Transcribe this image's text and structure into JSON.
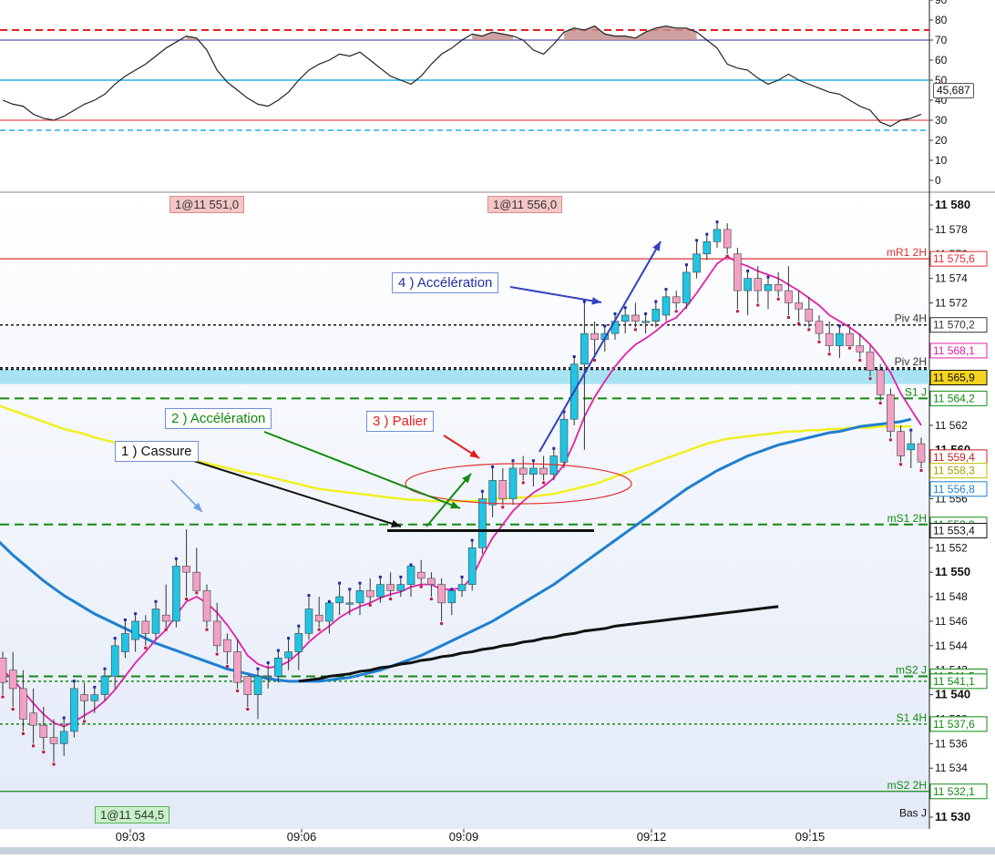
{
  "colors": {
    "bull": "#20c4e4",
    "bear": "#f2a0c4",
    "ma_fast": "#e020a8",
    "ma_mid": "#f0f020",
    "ma_slow": "#1f7fd0",
    "ma_long": "#111111",
    "osc": "#222222"
  },
  "oscillator": {
    "value_label": "45,687",
    "ticks": [
      "90",
      "80",
      "70",
      "60",
      "50",
      "40",
      "30",
      "20",
      "10",
      "0"
    ],
    "levels": [
      75,
      70,
      50,
      30,
      25
    ]
  },
  "price_axis": {
    "ticks": [
      "11 580",
      "11 578",
      "11 576",
      "11 574",
      "11 572",
      "11 570",
      "11 568",
      "11 566",
      "11 564",
      "11 562",
      "11 560",
      "11 558",
      "11 556",
      "11 554",
      "11 552",
      "11 550",
      "11 548",
      "11 546",
      "11 544",
      "11 542",
      "11 540",
      "11 538",
      "11 536",
      "11 534",
      "11 532",
      "11 530"
    ]
  },
  "time_axis": {
    "ticks": [
      "09:03",
      "09:06",
      "09:09",
      "09:12",
      "09:15"
    ]
  },
  "level_lines": [
    {
      "name": "mR1 2H",
      "value": "11 575,6",
      "price": 11575.6,
      "style": "solid",
      "color": "#e03030",
      "label_color": "#e03030",
      "box": "#ffffff"
    },
    {
      "name": "Piv 4H",
      "value": "11 570,2",
      "price": 11570.2,
      "style": "dotted",
      "color": "#111111",
      "label_color": "#333333",
      "box": "#ffffff"
    },
    {
      "name": "",
      "value": "11 568,1",
      "price": 11568.1,
      "style": "none",
      "color": "#e020a8",
      "label_color": "#e020a8",
      "box": "#ffffff"
    },
    {
      "name": "Piv 2H",
      "value": "",
      "price": 11566.7,
      "style": "dotted",
      "color": "#111111",
      "label_color": "#333333",
      "box": "#ffffff"
    },
    {
      "name": "",
      "value": "11 565,9",
      "price": 11565.9,
      "style": "band",
      "color": "#9adff0",
      "label_color": "#111111",
      "box": "#f5d320"
    },
    {
      "name": "S1 J",
      "value": "11 564,2",
      "price": 11564.2,
      "style": "dashed",
      "color": "#108a10",
      "label_color": "#108a10",
      "box": "#ffffff"
    },
    {
      "name": "",
      "value": "11 559,4",
      "price": 11559.4,
      "style": "none",
      "color": "#e03030",
      "label_color": "#c02020",
      "box": "#ffffff"
    },
    {
      "name": "",
      "value": "11 558,3",
      "price": 11558.3,
      "style": "none",
      "color": "#f0f020",
      "label_color": "#a0a000",
      "box": "#ffffff"
    },
    {
      "name": "",
      "value": "11 556,8",
      "price": 11556.8,
      "style": "none",
      "color": "#1f7fd0",
      "label_color": "#1f7fd0",
      "box": "#ffffff"
    },
    {
      "name": "mS1 2H",
      "value": "11 553,9",
      "price": 11553.9,
      "style": "dashed",
      "color": "#108a10",
      "label_color": "#108a10",
      "box": "#ffffff"
    },
    {
      "name": "",
      "value": "11 553,4",
      "price": 11553.4,
      "style": "none",
      "color": "#111111",
      "label_color": "#111111",
      "box": "#ffffff"
    },
    {
      "name": "mS2 J",
      "value": "11 541,5",
      "price": 11541.5,
      "style": "dashed",
      "color": "#108a10",
      "label_color": "#108a10",
      "box": "#ffffff"
    },
    {
      "name": "",
      "value": "11 541,1",
      "price": 11541.1,
      "style": "dotted",
      "color": "#108a10",
      "label_color": "#108a10",
      "box": "#ffffff"
    },
    {
      "name": "S1 4H",
      "value": "11 537,6",
      "price": 11537.6,
      "style": "dotted",
      "color": "#108a10",
      "label_color": "#108a10",
      "box": "#ffffff"
    },
    {
      "name": "mS2 2H",
      "value": "11 532,1",
      "price": 11532.1,
      "style": "solid",
      "color": "#108a10",
      "label_color": "#108a10",
      "box": "#ffffff"
    },
    {
      "name": "Bas J",
      "value": "",
      "price": 11529.8,
      "style": "none",
      "color": "#111111",
      "label_color": "#111111",
      "box": "#ffffff"
    }
  ],
  "trade_tags": [
    {
      "text": "1@11 551,0",
      "color": "#f4c6c6",
      "border": "#e08a8a"
    },
    {
      "text": "1@11 556,0",
      "color": "#f4c6c6",
      "border": "#e08a8a"
    },
    {
      "text": "1@11 544,5",
      "color": "#c8f0c8",
      "border": "#58b058"
    }
  ],
  "annotations": [
    {
      "label": "1 ) Cassure",
      "color": "#111111"
    },
    {
      "label": "2 ) Accélération",
      "color": "#108a10"
    },
    {
      "label": "3 ) Palier",
      "color": "#e02020"
    },
    {
      "label": "4 ) Accélération",
      "color": "#2030a0"
    }
  ],
  "chart_data": {
    "type": "candlestick",
    "title": "",
    "price_range": [
      11530,
      11580
    ],
    "oscillator_range": [
      0,
      90
    ],
    "candles": [
      [
        11543.0,
        11543.5,
        11540.0,
        11541.0
      ],
      [
        11542.0,
        11543.5,
        11539.0,
        11540.5
      ],
      [
        11540.5,
        11542.0,
        11537.0,
        11538.0
      ],
      [
        11538.5,
        11540.5,
        11536.0,
        11537.5
      ],
      [
        11537.5,
        11539.0,
        11535.5,
        11536.5
      ],
      [
        11536.5,
        11538.0,
        11534.5,
        11536.0
      ],
      [
        11536.0,
        11538.0,
        11535.0,
        11537.0
      ],
      [
        11537.0,
        11541.0,
        11536.5,
        11540.5
      ],
      [
        11540.0,
        11541.0,
        11538.0,
        11539.5
      ],
      [
        11539.5,
        11540.5,
        11538.5,
        11540.0
      ],
      [
        11540.0,
        11542.0,
        11539.5,
        11541.5
      ],
      [
        11541.5,
        11544.5,
        11540.5,
        11544.0
      ],
      [
        11543.5,
        11546.0,
        11543.0,
        11545.0
      ],
      [
        11544.5,
        11546.5,
        11543.5,
        11546.0
      ],
      [
        11546.0,
        11546.5,
        11544.0,
        11545.0
      ],
      [
        11545.0,
        11547.5,
        11544.5,
        11547.0
      ],
      [
        11546.5,
        11549.0,
        11545.5,
        11546.0
      ],
      [
        11546.0,
        11551.0,
        11545.5,
        11550.5
      ],
      [
        11550.5,
        11553.5,
        11548.0,
        11550.0
      ],
      [
        11550.0,
        11552.0,
        11548.5,
        11548.5
      ],
      [
        11548.5,
        11549.0,
        11545.5,
        11546.0
      ],
      [
        11546.0,
        11547.5,
        11543.5,
        11544.0
      ],
      [
        11544.5,
        11545.0,
        11542.5,
        11543.5
      ],
      [
        11543.5,
        11544.5,
        11540.5,
        11541.0
      ],
      [
        11541.5,
        11541.5,
        11539.0,
        11540.0
      ],
      [
        11540.0,
        11542.0,
        11538.0,
        11541.5
      ],
      [
        11541.5,
        11542.5,
        11540.5,
        11541.5
      ],
      [
        11541.5,
        11543.5,
        11541.0,
        11543.0
      ],
      [
        11543.0,
        11544.5,
        11542.0,
        11543.5
      ],
      [
        11543.5,
        11545.5,
        11542.0,
        11545.0
      ],
      [
        11545.0,
        11548.0,
        11544.5,
        11547.0
      ],
      [
        11546.5,
        11548.0,
        11545.5,
        11546.0
      ],
      [
        11546.0,
        11547.5,
        11545.0,
        11547.5
      ],
      [
        11547.5,
        11549.0,
        11546.5,
        11548.0
      ],
      [
        11547.5,
        11548.5,
        11546.5,
        11547.5
      ],
      [
        11547.5,
        11549.0,
        11546.5,
        11548.5
      ],
      [
        11548.5,
        11549.5,
        11547.5,
        11548.0
      ],
      [
        11548.0,
        11549.5,
        11547.5,
        11549.0
      ],
      [
        11549.0,
        11550.0,
        11548.0,
        11548.5
      ],
      [
        11548.5,
        11549.5,
        11548.0,
        11549.0
      ],
      [
        11549.0,
        11550.5,
        11548.0,
        11550.5
      ],
      [
        11550.0,
        11551.0,
        11549.0,
        11549.5
      ],
      [
        11549.5,
        11550.0,
        11548.0,
        11549.0
      ],
      [
        11549.0,
        11549.5,
        11546.0,
        11547.5
      ],
      [
        11547.5,
        11548.5,
        11546.5,
        11548.5
      ],
      [
        11548.5,
        11549.5,
        11548.0,
        11549.0
      ],
      [
        11549.0,
        11552.5,
        11548.5,
        11552.0
      ],
      [
        11552.0,
        11556.5,
        11551.5,
        11556.0
      ],
      [
        11555.5,
        11558.5,
        11554.5,
        11557.5
      ],
      [
        11557.5,
        11558.5,
        11555.5,
        11556.0
      ],
      [
        11556.0,
        11559.0,
        11555.5,
        11558.5
      ],
      [
        11558.5,
        11559.5,
        11557.5,
        11558.0
      ],
      [
        11558.0,
        11559.0,
        11557.0,
        11558.5
      ],
      [
        11558.5,
        11559.5,
        11557.5,
        11558.0
      ],
      [
        11558.0,
        11560.0,
        11557.5,
        11559.5
      ],
      [
        11559.0,
        11563.0,
        11558.5,
        11562.5
      ],
      [
        11562.5,
        11567.5,
        11562.0,
        11567.0
      ],
      [
        11567.0,
        11572.0,
        11560.0,
        11569.5
      ],
      [
        11569.5,
        11570.5,
        11567.5,
        11569.0
      ],
      [
        11569.0,
        11570.0,
        11568.0,
        11569.5
      ],
      [
        11569.5,
        11571.0,
        11569.0,
        11570.5
      ],
      [
        11570.5,
        11571.5,
        11569.5,
        11571.0
      ],
      [
        11571.0,
        11572.0,
        11570.0,
        11570.5
      ],
      [
        11570.5,
        11571.0,
        11569.5,
        11570.5
      ],
      [
        11570.5,
        11572.0,
        11570.0,
        11571.5
      ],
      [
        11571.0,
        11573.0,
        11570.5,
        11572.5
      ],
      [
        11572.5,
        11573.0,
        11571.5,
        11572.0
      ],
      [
        11572.0,
        11575.0,
        11571.5,
        11574.5
      ],
      [
        11574.5,
        11577.0,
        11574.0,
        11576.0
      ],
      [
        11576.0,
        11577.5,
        11575.5,
        11577.0
      ],
      [
        11577.0,
        11578.5,
        11576.5,
        11578.0
      ],
      [
        11578.0,
        11578.5,
        11576.0,
        11576.5
      ],
      [
        11576.0,
        11576.5,
        11571.5,
        11573.0
      ],
      [
        11573.0,
        11574.5,
        11571.0,
        11574.0
      ],
      [
        11574.0,
        11575.0,
        11572.0,
        11573.0
      ],
      [
        11573.0,
        11574.0,
        11571.5,
        11573.5
      ],
      [
        11573.5,
        11574.5,
        11572.5,
        11573.0
      ],
      [
        11573.0,
        11575.0,
        11571.0,
        11572.0
      ],
      [
        11572.0,
        11573.0,
        11570.5,
        11571.5
      ],
      [
        11571.5,
        11572.5,
        11570.0,
        11570.5
      ],
      [
        11570.5,
        11571.0,
        11569.0,
        11569.5
      ],
      [
        11569.5,
        11570.5,
        11568.0,
        11568.5
      ],
      [
        11568.5,
        11570.0,
        11567.5,
        11569.5
      ],
      [
        11569.5,
        11570.0,
        11568.5,
        11568.5
      ],
      [
        11568.5,
        11569.5,
        11567.5,
        11568.0
      ],
      [
        11568.0,
        11568.5,
        11566.0,
        11566.5
      ],
      [
        11566.5,
        11567.0,
        11564.0,
        11564.5
      ],
      [
        11564.5,
        11565.0,
        11561.0,
        11561.5
      ],
      [
        11561.5,
        11562.0,
        11559.0,
        11559.5
      ],
      [
        11560.0,
        11561.5,
        11558.5,
        11560.5
      ],
      [
        11560.5,
        11561.0,
        11558.5,
        11559.0
      ]
    ],
    "ma_fast": [
      11542.0,
      11541.2,
      11540.3,
      11539.3,
      11538.4,
      11537.7,
      11537.4,
      11537.8,
      11538.3,
      11538.8,
      11539.5,
      11540.4,
      11541.5,
      11542.6,
      11543.5,
      11544.5,
      11545.3,
      11546.5,
      11547.6,
      11548.0,
      11547.5,
      11546.7,
      11545.7,
      11544.5,
      11543.2,
      11542.5,
      11542.2,
      11542.3,
      11542.7,
      11543.4,
      11544.3,
      11545.0,
      11545.6,
      11546.3,
      11546.8,
      11547.2,
      11547.5,
      11547.9,
      11548.2,
      11548.4,
      11548.8,
      11549.0,
      11549.0,
      11548.6,
      11548.6,
      11548.7,
      11549.6,
      11551.3,
      11552.8,
      11553.9,
      11555.0,
      11555.8,
      11556.5,
      11557.0,
      11557.7,
      11558.8,
      11560.6,
      11562.7,
      11564.3,
      11565.6,
      11566.8,
      11567.8,
      11568.6,
      11569.1,
      11569.7,
      11570.4,
      11570.8,
      11571.7,
      11572.8,
      11574.0,
      11575.2,
      11575.8,
      11575.3,
      11575.0,
      11574.6,
      11574.3,
      11574.0,
      11573.5,
      11573.0,
      11572.4,
      11571.8,
      11571.0,
      11570.5,
      11570.0,
      11569.4,
      11568.6,
      11567.6,
      11566.3,
      11564.6,
      11563.3,
      11562.0
    ],
    "ma_mid": [
      11563.8,
      11563.5,
      11563.2,
      11562.9,
      11562.6,
      11562.3,
      11562.0,
      11561.7,
      11561.5,
      11561.3,
      11561.0,
      11560.8,
      11560.6,
      11560.5,
      11560.3,
      11560.1,
      11559.9,
      11559.7,
      11559.5,
      11559.3,
      11559.1,
      11558.9,
      11558.7,
      11558.5,
      11558.3,
      11558.1,
      11558.0,
      11557.8,
      11557.6,
      11557.4,
      11557.2,
      11557.0,
      11556.8,
      11556.7,
      11556.6,
      11556.5,
      11556.4,
      11556.3,
      11556.2,
      11556.1,
      11556.0,
      11555.9,
      11555.9,
      11555.8,
      11555.8,
      11555.8,
      11555.8,
      11555.8,
      11555.9,
      11556.0,
      11556.0,
      11556.1,
      11556.1,
      11556.2,
      11556.3,
      11556.4,
      11556.6,
      11556.8,
      11557.0,
      11557.2,
      11557.5,
      11557.8,
      11558.1,
      11558.4,
      11558.7,
      11559.0,
      11559.3,
      11559.6,
      11559.9,
      11560.2,
      11560.5,
      11560.7,
      11560.9,
      11561.0,
      11561.1,
      11561.2,
      11561.3,
      11561.4,
      11561.5,
      11561.5,
      11561.6,
      11561.6,
      11561.7,
      11561.7,
      11561.8,
      11561.8,
      11561.8,
      11561.9,
      11561.9,
      11561.9,
      11561.9
    ],
    "ma_slow": [
      11553.0,
      11552.2,
      11551.4,
      11550.7,
      11550.0,
      11549.3,
      11548.7,
      11548.1,
      11547.6,
      11547.1,
      11546.6,
      11546.2,
      11545.8,
      11545.4,
      11545.0,
      11544.6,
      11544.2,
      11543.9,
      11543.6,
      11543.3,
      11543.0,
      11542.7,
      11542.4,
      11542.1,
      11541.9,
      11541.7,
      11541.5,
      11541.3,
      11541.2,
      11541.1,
      11541.1,
      11541.1,
      11541.1,
      11541.2,
      11541.3,
      11541.4,
      11541.6,
      11541.8,
      11542.0,
      11542.3,
      11542.6,
      11542.9,
      11543.2,
      11543.6,
      11544.0,
      11544.4,
      11544.8,
      11545.2,
      11545.6,
      11546.0,
      11546.5,
      11547.0,
      11547.5,
      11548.0,
      11548.5,
      11549.0,
      11549.6,
      11550.2,
      11550.8,
      11551.4,
      11552.0,
      11552.6,
      11553.2,
      11553.8,
      11554.4,
      11555.0,
      11555.6,
      11556.2,
      11556.8,
      11557.3,
      11557.8,
      11558.3,
      11558.7,
      11559.1,
      11559.5,
      11559.8,
      11560.1,
      11560.4,
      11560.6,
      11560.8,
      11561.0,
      11561.2,
      11561.4,
      11561.5,
      11561.7,
      11561.9,
      11562.0,
      11562.1,
      11562.2,
      11562.3,
      11562.5
    ],
    "ma_long": [
      11541.1,
      11541.2,
      11541.3,
      11541.5,
      11541.6,
      11541.7,
      11541.9,
      11542.0,
      11542.2,
      11542.3,
      11542.5,
      11542.6,
      11542.8,
      11542.9,
      11543.1,
      11543.2,
      11543.4,
      11543.5,
      11543.7,
      11543.8,
      11544.0,
      11544.1,
      11544.3,
      11544.4,
      11544.6,
      11544.7,
      11544.9,
      11545.0,
      11545.2,
      11545.3,
      11545.4,
      11545.6,
      11545.7,
      11545.8,
      11545.9,
      11546.0,
      11546.1,
      11546.2,
      11546.3,
      11546.4,
      11546.5,
      11546.6,
      11546.7,
      11546.8,
      11546.9,
      11547.0,
      11547.1,
      11547.2
    ],
    "oscillator": [
      40,
      38,
      37,
      33,
      31,
      30,
      32,
      35,
      38,
      40,
      43,
      48,
      52,
      55,
      58,
      62,
      66,
      69,
      72,
      71,
      65,
      55,
      49,
      45,
      41,
      38,
      37,
      40,
      44,
      50,
      55,
      58,
      60,
      63,
      62,
      64,
      60,
      56,
      52,
      50,
      48,
      52,
      58,
      63,
      66,
      70,
      73,
      72,
      74,
      73,
      72,
      70,
      65,
      63,
      68,
      74,
      76,
      75,
      77,
      73,
      72,
      72,
      71,
      74,
      76,
      77,
      76,
      76,
      74,
      70,
      66,
      58,
      56,
      55,
      51,
      48,
      50,
      53,
      50,
      48,
      46,
      44,
      43,
      40,
      37,
      35,
      29,
      27,
      30,
      31,
      33
    ],
    "oscillator_label": "45,687"
  }
}
